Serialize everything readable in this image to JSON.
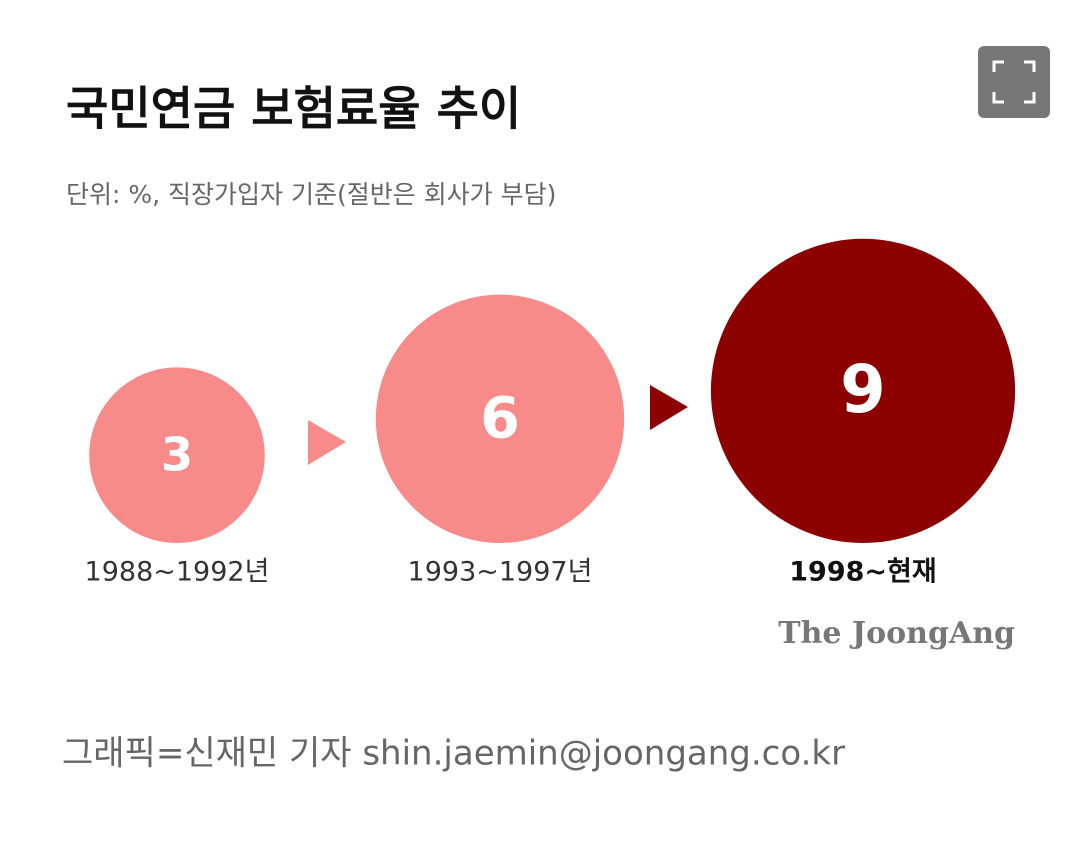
{
  "chart_data": {
    "type": "bubble",
    "title": "국민연금 보험료율 추이",
    "subtitle": "단위: %, 직장가입자 기준(절반은 회사가 부담)",
    "categories": [
      "1988~1992년",
      "1993~1997년",
      "1998~현재"
    ],
    "values": [
      3,
      6,
      9
    ],
    "colors": [
      "#f98a8a",
      "#f98a8a",
      "#8c0000"
    ]
  },
  "source": "The JoongAng",
  "caption": "그래픽=신재민 기자 shin.jaemin@joongang.co.kr"
}
